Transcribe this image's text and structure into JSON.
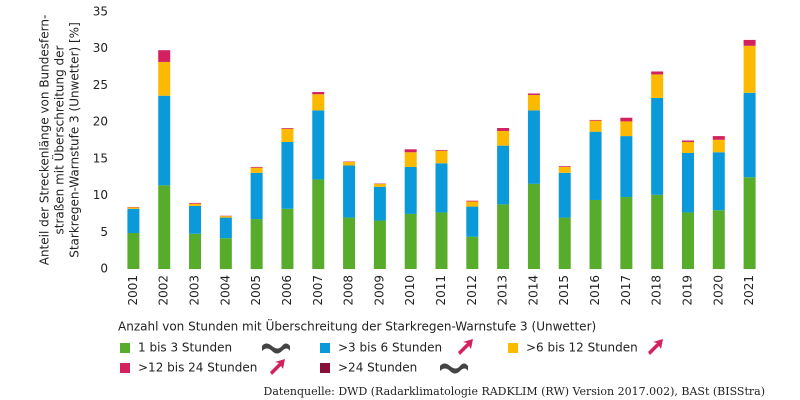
{
  "chart_data": {
    "type": "bar",
    "stacked": true,
    "y_label_lines": [
      "Anteil der Streckenlänge von Bundesfern-",
      "straßen mit Überschreitung der",
      "Starkregen-Warnstufe 3 (Unwetter) [%]"
    ],
    "legend_title": "Anzahl von Stunden mit Überschreitung der Starkregen-Warnstufe 3 (Unwetter)",
    "source": "Datenquelle: DWD (Radarklimatologie RADKLIM (RW) Version 2017.002), BASt (BISStra)",
    "categories": [
      "2001",
      "2002",
      "2003",
      "2004",
      "2005",
      "2006",
      "2007",
      "2008",
      "2009",
      "2010",
      "2011",
      "2012",
      "2013",
      "2014",
      "2015",
      "2016",
      "2017",
      "2018",
      "2019",
      "2020",
      "2021"
    ],
    "series": [
      {
        "name": "1 bis 3 Stunden",
        "color": "#58ac2c",
        "values": [
          4.9,
          11.4,
          4.8,
          4.2,
          6.8,
          8.2,
          12.2,
          7.0,
          6.6,
          7.5,
          7.7,
          4.4,
          8.8,
          11.6,
          7.0,
          9.4,
          9.8,
          10.1,
          7.7,
          8.0,
          12.5
        ]
      },
      {
        "name": ">3 bis 6 Stunden",
        "color": "#0a9ad9",
        "values": [
          3.3,
          12.2,
          3.8,
          2.8,
          6.3,
          9.1,
          9.4,
          7.1,
          4.6,
          6.4,
          6.7,
          4.1,
          8.0,
          10.0,
          6.1,
          9.3,
          8.3,
          13.2,
          8.1,
          7.9,
          11.5
        ]
      },
      {
        "name": ">6 bis 12 Stunden",
        "color": "#fbb900",
        "values": [
          0.2,
          4.6,
          0.3,
          0.2,
          0.7,
          1.8,
          2.2,
          0.5,
          0.4,
          2.0,
          1.7,
          0.7,
          2.0,
          2.1,
          0.8,
          1.5,
          2.0,
          3.2,
          1.5,
          1.7,
          6.4
        ]
      },
      {
        "name": ">12 bis 24 Stunden",
        "color": "#d3215f",
        "values": [
          0.05,
          1.6,
          0.1,
          0.05,
          0.1,
          0.1,
          0.3,
          0.05,
          0.05,
          0.4,
          0.1,
          0.1,
          0.4,
          0.2,
          0.1,
          0.1,
          0.5,
          0.4,
          0.2,
          0.5,
          0.8
        ]
      },
      {
        "name": ">24 Stunden",
        "color": "#8a1038",
        "values": [
          0,
          0,
          0,
          0,
          0,
          0,
          0,
          0,
          0,
          0,
          0,
          0,
          0,
          0,
          0,
          0,
          0,
          0,
          0,
          0,
          0
        ]
      }
    ],
    "ylim": [
      0,
      35
    ],
    "yticks": [
      0,
      5,
      10,
      15,
      20,
      25,
      30,
      35
    ],
    "grid": false
  }
}
